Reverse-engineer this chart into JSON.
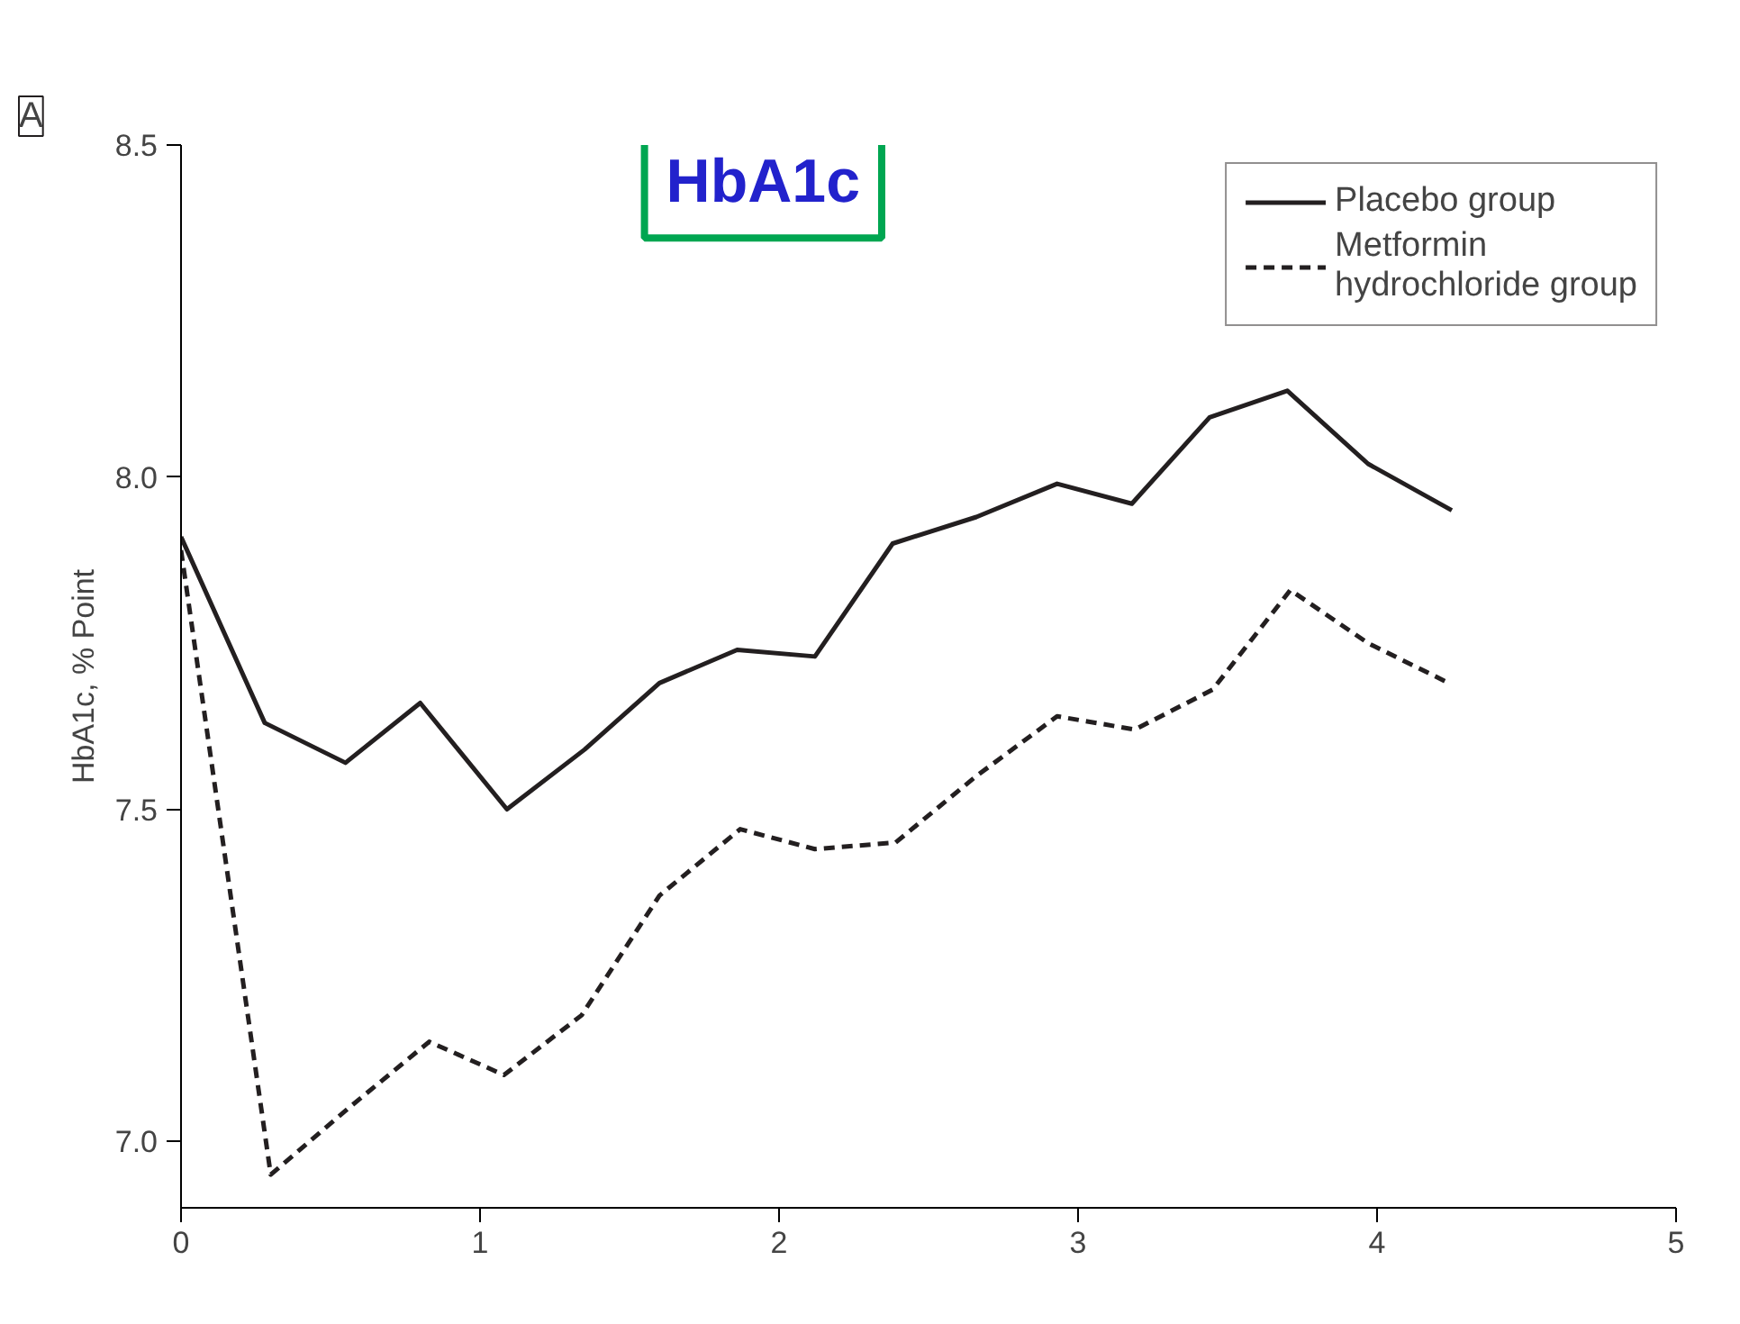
{
  "chart_data": {
    "type": "line",
    "title": "HbA1c",
    "annotations": [
      "A"
    ],
    "ylabel": "HbA1c, % Point",
    "xlim": [
      0,
      5
    ],
    "xticks": [
      0,
      1,
      2,
      3,
      4,
      5
    ],
    "ylim": [
      6.9,
      8.5
    ],
    "yticks": [
      {
        "value": 7.0,
        "label": "7.0"
      },
      {
        "value": 7.5,
        "label": "7.5"
      },
      {
        "value": 8.0,
        "label": "8.0"
      },
      {
        "value": 8.5,
        "label": "8.5"
      }
    ],
    "grid": false,
    "legend": "top right",
    "marker": "none",
    "series": [
      {
        "name": "Placebo group",
        "color": "#231f20",
        "line_style": "solid",
        "x": [
          0,
          0.28,
          0.55,
          0.8,
          1.09,
          1.35,
          1.6,
          1.86,
          2.12,
          2.38,
          2.66,
          2.93,
          3.18,
          3.44,
          3.7,
          3.97,
          4.25
        ],
        "values": [
          7.91,
          7.63,
          7.57,
          7.66,
          7.5,
          7.59,
          7.69,
          7.74,
          7.73,
          7.9,
          7.94,
          7.99,
          7.96,
          8.09,
          8.13,
          8.02,
          7.95
        ]
      },
      {
        "name": "Metformin\nhydrochloride group",
        "color": "#231f20",
        "line_style": "dashed",
        "x": [
          0,
          0.3,
          0.56,
          0.83,
          1.08,
          1.34,
          1.6,
          1.87,
          2.12,
          2.39,
          2.66,
          2.93,
          3.19,
          3.45,
          3.71,
          3.97,
          4.24
        ],
        "values": [
          7.89,
          6.95,
          7.05,
          7.15,
          7.1,
          7.19,
          7.37,
          7.47,
          7.44,
          7.45,
          7.55,
          7.64,
          7.62,
          7.68,
          7.83,
          7.75,
          7.69
        ]
      }
    ]
  }
}
